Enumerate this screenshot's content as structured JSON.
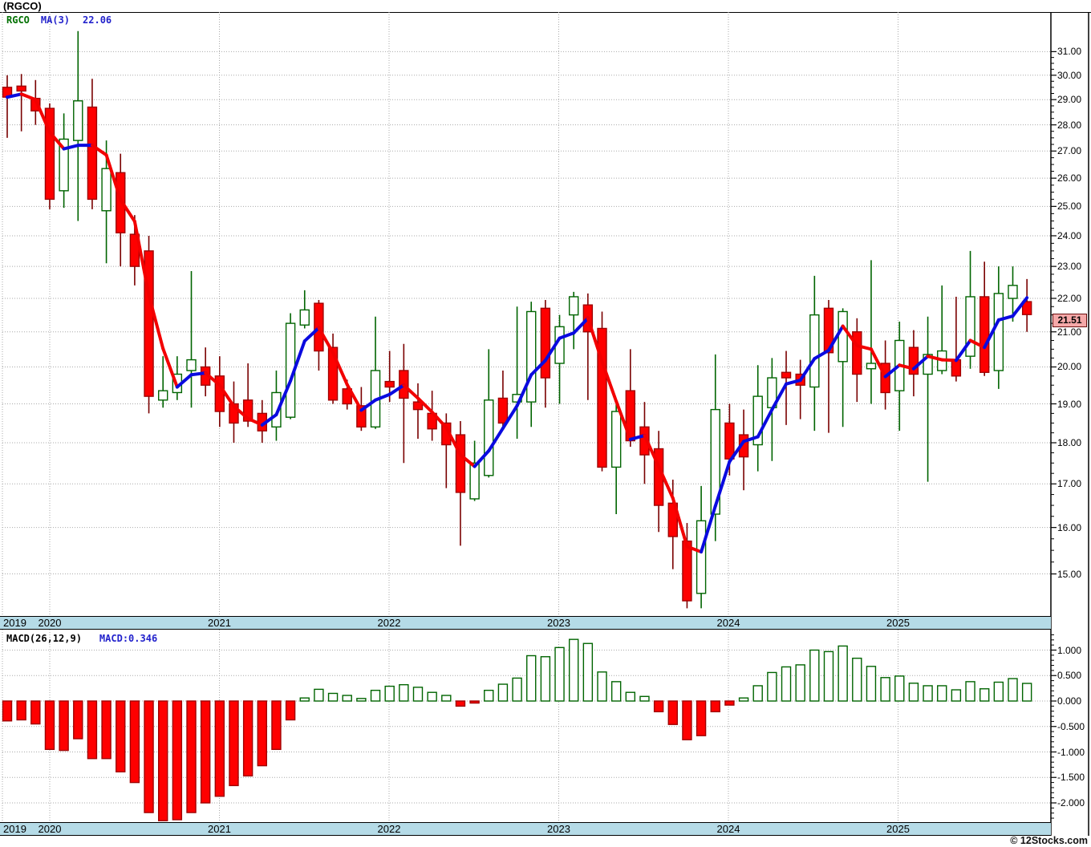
{
  "title": "(RGCO)",
  "legend": {
    "symbol": "RGCO",
    "ma_label": "MA(3)",
    "ma_value": "22.06"
  },
  "macd_legend": {
    "label": "MACD(26,12,9)",
    "value_label": "MACD:0.346"
  },
  "price_label": "21.51",
  "credit": "© 12Stocks.com",
  "colors": {
    "candle_up_stroke": "#006400",
    "candle_up_fill": "#ffffff",
    "candle_down_fill": "#fe0000",
    "candle_down_stroke": "#a00000",
    "wick_up": "#006400",
    "wick_down": "#7a0000",
    "ma_rising": "#0a0adf",
    "ma_falling": "#f20000",
    "macd_pos_stroke": "#006400",
    "macd_pos_fill": "#ffffff",
    "macd_neg_fill": "#fe0000",
    "macd_neg_stroke": "#a00000",
    "grid": "#a9a9a9",
    "strip_bg": "#b5dbe7",
    "pill_bg": "#f5a8a8",
    "legend_green": "#007000",
    "legend_blue": "#2222cc"
  },
  "chart_data": [
    {
      "type": "candlestick",
      "title": "RGCO monthly price with MA(3)",
      "interval": "monthly",
      "y_axis": {
        "scale": "log",
        "tick_labels": [
          "31.00",
          "30.00",
          "29.00",
          "28.00",
          "27.00",
          "26.00",
          "25.00",
          "24.00",
          "23.00",
          "22.00",
          "21.00",
          "20.00",
          "19.00",
          "18.00",
          "17.00",
          "16.00",
          "15.00"
        ],
        "tick_values": [
          31,
          30,
          29,
          28,
          27,
          26,
          25,
          24,
          23,
          22,
          21,
          20,
          19,
          18,
          17,
          16,
          15
        ]
      },
      "x_axis": {
        "years": [
          "2019",
          "2020",
          "2021",
          "2022",
          "2023",
          "2024",
          "2025"
        ]
      },
      "last_price": 21.51,
      "ma3_last": 22.06,
      "ohlc": [
        [
          29.5,
          30.0,
          27.5,
          29.1
        ],
        [
          29.55,
          30.05,
          27.75,
          29.35
        ],
        [
          29.05,
          29.8,
          28.0,
          28.55
        ],
        [
          28.65,
          28.85,
          24.9,
          25.25
        ],
        [
          25.55,
          28.45,
          24.95,
          27.45
        ],
        [
          27.4,
          31.9,
          24.5,
          28.95
        ],
        [
          28.7,
          29.85,
          24.9,
          25.25
        ],
        [
          24.85,
          27.4,
          23.1,
          26.35
        ],
        [
          26.2,
          26.9,
          23.0,
          24.1
        ],
        [
          24.05,
          24.7,
          22.4,
          23.0
        ],
        [
          23.5,
          24.0,
          18.75,
          19.2
        ],
        [
          19.1,
          20.3,
          18.9,
          19.35
        ],
        [
          19.3,
          20.3,
          19.1,
          19.8
        ],
        [
          19.9,
          22.85,
          18.9,
          20.2
        ],
        [
          20.0,
          20.55,
          19.2,
          19.5
        ],
        [
          19.75,
          20.3,
          18.4,
          18.8
        ],
        [
          19.0,
          19.6,
          18.0,
          18.5
        ],
        [
          19.1,
          20.1,
          18.4,
          18.55
        ],
        [
          18.75,
          19.1,
          18.0,
          18.3
        ],
        [
          18.4,
          19.9,
          18.05,
          19.3
        ],
        [
          18.65,
          21.55,
          18.6,
          21.25
        ],
        [
          21.2,
          22.25,
          21.1,
          21.65
        ],
        [
          21.85,
          21.95,
          19.9,
          20.45
        ],
        [
          20.55,
          20.95,
          19.0,
          19.1
        ],
        [
          19.4,
          19.65,
          18.85,
          19.0
        ],
        [
          18.95,
          19.45,
          18.3,
          18.4
        ],
        [
          18.4,
          21.45,
          18.35,
          19.9
        ],
        [
          19.6,
          20.45,
          19.05,
          19.45
        ],
        [
          19.9,
          20.65,
          17.5,
          19.15
        ],
        [
          19.05,
          19.55,
          18.1,
          18.85
        ],
        [
          18.75,
          19.35,
          18.05,
          18.35
        ],
        [
          18.5,
          18.75,
          16.9,
          17.95
        ],
        [
          18.2,
          18.55,
          15.6,
          16.8
        ],
        [
          16.65,
          18.05,
          16.6,
          17.5
        ],
        [
          17.2,
          20.5,
          17.15,
          19.1
        ],
        [
          19.15,
          19.9,
          18.35,
          18.5
        ],
        [
          19.05,
          21.75,
          18.1,
          19.25
        ],
        [
          19.05,
          21.9,
          18.4,
          21.6
        ],
        [
          21.7,
          21.95,
          18.9,
          19.7
        ],
        [
          20.1,
          21.5,
          19.0,
          21.15
        ],
        [
          21.5,
          22.2,
          20.5,
          22.05
        ],
        [
          21.8,
          22.15,
          19.1,
          21.0
        ],
        [
          21.1,
          21.6,
          17.3,
          17.4
        ],
        [
          17.4,
          19.0,
          16.3,
          18.8
        ],
        [
          19.35,
          20.5,
          17.9,
          18.05
        ],
        [
          18.4,
          19.05,
          17.0,
          17.7
        ],
        [
          17.85,
          18.3,
          15.9,
          16.5
        ],
        [
          16.55,
          17.1,
          15.1,
          15.8
        ],
        [
          15.7,
          16.1,
          14.3,
          14.45
        ],
        [
          14.6,
          16.95,
          14.3,
          16.15
        ],
        [
          16.3,
          20.35,
          15.7,
          18.85
        ],
        [
          18.5,
          19.0,
          17.2,
          17.6
        ],
        [
          18.2,
          18.85,
          16.85,
          17.65
        ],
        [
          17.95,
          20.05,
          17.3,
          19.2
        ],
        [
          18.9,
          20.25,
          17.55,
          19.7
        ],
        [
          19.85,
          20.45,
          18.45,
          19.7
        ],
        [
          19.8,
          20.2,
          18.6,
          19.5
        ],
        [
          19.45,
          22.7,
          18.3,
          21.5
        ],
        [
          21.7,
          21.95,
          18.25,
          20.4
        ],
        [
          20.15,
          21.7,
          18.4,
          21.6
        ],
        [
          21.0,
          21.4,
          19.05,
          19.8
        ],
        [
          19.95,
          23.2,
          19.0,
          20.1
        ],
        [
          20.1,
          20.75,
          18.85,
          19.3
        ],
        [
          19.35,
          21.3,
          18.3,
          20.75
        ],
        [
          20.55,
          21.05,
          19.2,
          19.8
        ],
        [
          19.8,
          21.45,
          17.05,
          20.35
        ],
        [
          19.9,
          22.4,
          19.8,
          20.45
        ],
        [
          20.2,
          22.05,
          19.6,
          19.75
        ],
        [
          20.3,
          23.5,
          19.95,
          22.05
        ],
        [
          22.05,
          23.15,
          19.75,
          19.85
        ],
        [
          19.9,
          23.0,
          19.4,
          22.15
        ],
        [
          22.0,
          23.0,
          21.3,
          22.4
        ],
        [
          21.9,
          22.6,
          21.0,
          21.51
        ]
      ]
    },
    {
      "type": "bar",
      "title": "MACD(26,12,9) histogram",
      "y_axis": {
        "tick_labels": [
          "1.000",
          "0.500",
          "0.000",
          "-0.500",
          "-1.000",
          "-1.500",
          "-2.000"
        ],
        "tick_values": [
          1.0,
          0.5,
          0.0,
          -0.5,
          -1.0,
          -1.5,
          -2.0
        ]
      },
      "values": [
        -0.39,
        -0.37,
        -0.45,
        -0.95,
        -0.97,
        -0.74,
        -1.13,
        -1.13,
        -1.39,
        -1.6,
        -2.19,
        -2.35,
        -2.33,
        -2.19,
        -2.0,
        -1.87,
        -1.66,
        -1.47,
        -1.27,
        -0.95,
        -0.37,
        0.06,
        0.23,
        0.15,
        0.11,
        0.05,
        0.21,
        0.29,
        0.32,
        0.27,
        0.17,
        0.11,
        -0.1,
        -0.04,
        0.21,
        0.33,
        0.45,
        0.89,
        0.87,
        1.05,
        1.21,
        1.13,
        0.57,
        0.38,
        0.17,
        0.09,
        -0.21,
        -0.46,
        -0.76,
        -0.68,
        -0.21,
        -0.08,
        0.06,
        0.3,
        0.56,
        0.67,
        0.71,
        1.0,
        0.97,
        1.08,
        0.84,
        0.68,
        0.46,
        0.49,
        0.35,
        0.3,
        0.3,
        0.22,
        0.38,
        0.24,
        0.37,
        0.44,
        0.346
      ]
    }
  ]
}
